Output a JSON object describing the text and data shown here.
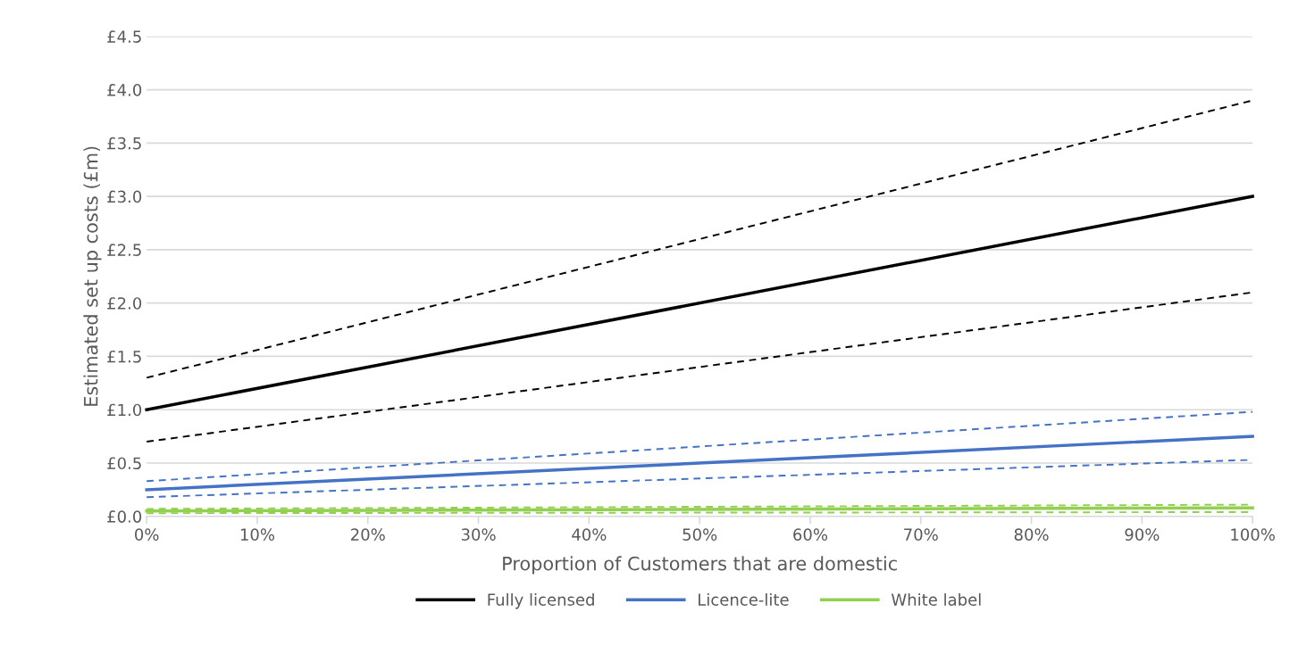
{
  "chart_data": {
    "type": "line",
    "xlabel": "Proportion of Customers that are domestic",
    "ylabel": "Estimated set up costs (£m)",
    "x": [
      0,
      100
    ],
    "xlim": [
      0,
      100
    ],
    "xticks": [
      {
        "value": 0,
        "label": "0%"
      },
      {
        "value": 10,
        "label": "10%"
      },
      {
        "value": 20,
        "label": "20%"
      },
      {
        "value": 30,
        "label": "30%"
      },
      {
        "value": 40,
        "label": "40%"
      },
      {
        "value": 50,
        "label": "50%"
      },
      {
        "value": 60,
        "label": "60%"
      },
      {
        "value": 70,
        "label": "70%"
      },
      {
        "value": 80,
        "label": "80%"
      },
      {
        "value": 90,
        "label": "90%"
      },
      {
        "value": 100,
        "label": "100%"
      }
    ],
    "ylim": [
      0,
      4.5
    ],
    "yticks": [
      {
        "value": 0,
        "label": "£0.0"
      },
      {
        "value": 0.5,
        "label": "£0.5"
      },
      {
        "value": 1,
        "label": "£1.0"
      },
      {
        "value": 1.5,
        "label": "£1.5"
      },
      {
        "value": 2,
        "label": "£2.0"
      },
      {
        "value": 2.5,
        "label": "£2.5"
      },
      {
        "value": 3,
        "label": "£3.0"
      },
      {
        "value": 3.5,
        "label": "£3.5"
      },
      {
        "value": 4,
        "label": "£4.0"
      },
      {
        "value": 4.5,
        "label": "£4.5"
      }
    ],
    "grid": "y",
    "legend": "bottom",
    "marker": "none",
    "series": [
      {
        "color": "#000000",
        "values": [
          1.3,
          3.9
        ],
        "line_style": "dashed"
      },
      {
        "color": "#000000",
        "values": [
          0.7,
          2.1
        ],
        "line_style": "dashed"
      },
      {
        "color": "#4472c4",
        "values": [
          0.33,
          0.98
        ],
        "line_style": "dashed"
      },
      {
        "color": "#4472c4",
        "values": [
          0.18,
          0.53
        ],
        "line_style": "dashed"
      },
      {
        "color": "#92d050",
        "values": [
          0.07,
          0.11
        ],
        "line_style": "dashed"
      },
      {
        "color": "#92d050",
        "values": [
          0.03,
          0.04
        ],
        "line_style": "dashed"
      },
      {
        "name": "Fully licensed",
        "color": "#000000",
        "values": [
          1.0,
          3.0
        ],
        "line_style": "solid"
      },
      {
        "name": "Licence-lite",
        "color": "#4472c4",
        "values": [
          0.25,
          0.75
        ],
        "line_style": "solid"
      },
      {
        "name": "White label",
        "color": "#92d050",
        "values": [
          0.05,
          0.08
        ],
        "line_style": "solid"
      }
    ]
  }
}
